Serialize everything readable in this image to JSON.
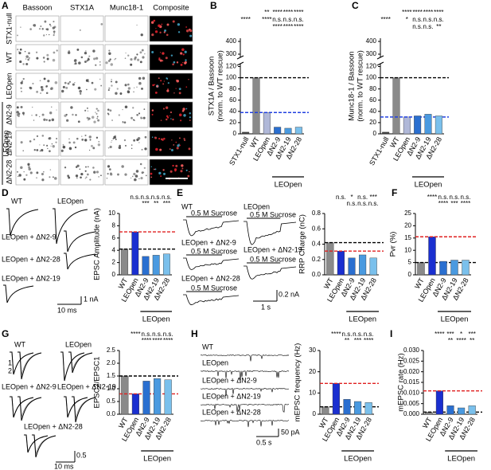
{
  "panels": {
    "letters": [
      "A",
      "B",
      "C",
      "D",
      "E",
      "F",
      "G",
      "H",
      "I"
    ]
  },
  "image_grid": {
    "columns": [
      "Bassoon",
      "STX1A",
      "Munc18-1",
      "Composite"
    ],
    "column_colors": [
      "#e0202a",
      "#2aa02a",
      "#3030c0",
      "#000000"
    ],
    "rows": [
      "STX1-null",
      "WT",
      "LEOpen",
      "ΔN2-9",
      "ΔN2-19",
      "ΔN2-28"
    ],
    "group": "LEOpen"
  },
  "traces": {
    "D": {
      "labels": [
        "WT",
        "LEOpen",
        "LEOpen + ΔN2-9",
        "LEOpen + ΔN2-28",
        "LEOpen + ΔN2-19"
      ],
      "scale_x": "10 ms",
      "scale_y": "1 nA"
    },
    "E": {
      "labels": [
        "WT",
        "LEOpen",
        "LEOpen + ΔN2-9",
        "LEOpen + ΔN2-19",
        "LEOpen + ΔN2-28"
      ],
      "stimulus": "0.5 M Sucrose",
      "scale_x": "1 s",
      "scale_y": "0.2 nA"
    },
    "G": {
      "labels": [
        "WT",
        "LEOpen",
        "LEOpen + ΔN2-9",
        "LEOpen + ΔN2-19",
        "LEOpen + ΔN2-28"
      ],
      "pulses": [
        "1",
        "2"
      ],
      "scale_x": "10 ms",
      "scale_y": "0.5"
    },
    "H": {
      "labels": [
        "WT",
        "LEOpen",
        "LEOpen + ΔN2-9",
        "LEOpen + ΔN2-19",
        "LEOpen + ΔN2-28"
      ],
      "scale_x": "0.5 s",
      "scale_y": "50 pA"
    }
  },
  "chart_data": [
    {
      "type": "bar",
      "ylabel": "STX1A / Bassoon",
      "ylabel_2": "(norm. to WT rescue)",
      "categories": [
        "STX1-null",
        "WT",
        "LEOpen",
        "ΔN2-9",
        "ΔN2-19",
        "ΔN2-28"
      ],
      "values": [
        3,
        100,
        38,
        12,
        10,
        12
      ],
      "colors": [
        "#444444",
        "#8a8a8a",
        "#b0b8d8",
        "#2a6fd0",
        "#4a9ae0",
        "#7ac0ec"
      ],
      "mean_lines": [
        null,
        "#000000",
        "#2040e0",
        null,
        null,
        null
      ],
      "ylim": [
        0,
        125
      ],
      "yticks": [
        0,
        20,
        40,
        60,
        80,
        100,
        120
      ],
      "ylim_upper": [
        275,
        425
      ],
      "yticks_upper": [
        300,
        400
      ],
      "stats": [
        {
          "color": "#000000",
          "labels": [
            null,
            null,
            "**",
            "****",
            "****",
            "****"
          ]
        },
        {
          "color": "#e02020",
          "labels": [
            "****",
            null,
            "****",
            "n.s.",
            "n.s.",
            "n.s."
          ]
        },
        {
          "color": "#2040e0",
          "labels": [
            null,
            null,
            null,
            "****",
            "****",
            "****"
          ]
        }
      ],
      "group": "LEOpen"
    },
    {
      "type": "bar",
      "ylabel": "Munc18-1 / Bassoon",
      "ylabel_2": "(norm. to WT rescue)",
      "categories": [
        "STX1-null",
        "WT",
        "LEOpen",
        "ΔN2-9",
        "ΔN2-19",
        "ΔN2-28"
      ],
      "values": [
        3,
        100,
        30,
        32,
        35,
        32
      ],
      "colors": [
        "#444444",
        "#8a8a8a",
        "#b0b8d8",
        "#2a6fd0",
        "#4a9ae0",
        "#7ac0ec"
      ],
      "mean_lines": [
        null,
        "#000000",
        "#2040e0",
        null,
        null,
        null
      ],
      "ylim": [
        0,
        125
      ],
      "yticks": [
        0,
        20,
        40,
        60,
        80,
        100,
        120
      ],
      "ylim_upper": [
        275,
        425
      ],
      "yticks_upper": [
        300,
        400
      ],
      "stats": [
        {
          "color": "#000000",
          "labels": [
            null,
            null,
            "****",
            "****",
            "****",
            "****"
          ]
        },
        {
          "color": "#e02020",
          "labels": [
            "****",
            null,
            "*",
            "n.s.",
            "n.s.",
            "n.s."
          ]
        },
        {
          "color": "#2040e0",
          "labels": [
            null,
            null,
            null,
            "n.s.",
            "n.s.",
            "**"
          ]
        }
      ],
      "group": "LEOpen"
    },
    {
      "type": "bar",
      "ylabel": "EPSC Amplitude (nA)",
      "categories": [
        "WT",
        "LEOpen",
        "ΔN2-9",
        "ΔN2-19",
        "ΔN2-28"
      ],
      "values": [
        4.2,
        7.0,
        3.0,
        3.2,
        3.4
      ],
      "colors": [
        "#8a8a8a",
        "#1a2fd0",
        "#2a6fd0",
        "#4a9ae0",
        "#7ac0ec"
      ],
      "mean_lines": [
        "#000000",
        "#e02020",
        null,
        null,
        null
      ],
      "ylim": [
        0,
        10
      ],
      "yticks": [
        0,
        2,
        4,
        6,
        8,
        10
      ],
      "stats": [
        {
          "color": "#000000",
          "labels": [
            null,
            "n.s.",
            "n.s.",
            "n.s.",
            "n.s."
          ]
        },
        {
          "color": "#e02020",
          "labels": [
            null,
            null,
            "***",
            "**",
            "***"
          ]
        }
      ],
      "group": "LEOpen"
    },
    {
      "type": "bar",
      "ylabel": "RRP Charge (nC)",
      "categories": [
        "WT",
        "LEOpen",
        "ΔN2-9",
        "ΔN2-19",
        "ΔN2-28"
      ],
      "values": [
        0.42,
        0.31,
        0.22,
        0.26,
        0.22
      ],
      "colors": [
        "#8a8a8a",
        "#1a2fd0",
        "#2a6fd0",
        "#4a9ae0",
        "#7ac0ec"
      ],
      "mean_lines": [
        "#000000",
        "#e02020",
        null,
        null,
        null
      ],
      "ylim": [
        0,
        0.8
      ],
      "yticks": [
        {
          "value": 0,
          "label": "0.0"
        },
        0.2,
        0.4,
        0.6,
        0.8
      ],
      "stats": [
        {
          "color": "#000000",
          "labels": [
            null,
            "n.s.",
            "*",
            "n.s.",
            "***"
          ]
        },
        {
          "color": "#e02020",
          "labels": [
            null,
            null,
            "n.s.",
            "n.s.",
            "n.s."
          ]
        }
      ],
      "group": "LEOpen"
    },
    {
      "type": "bar",
      "ylabel": "Pvr (%)",
      "categories": [
        "WT",
        "LEOpen",
        "ΔN2-9",
        "ΔN2-19",
        "ΔN2-28"
      ],
      "values": [
        5,
        15.5,
        5.5,
        6,
        6
      ],
      "colors": [
        "#8a8a8a",
        "#1a2fd0",
        "#2a6fd0",
        "#4a9ae0",
        "#7ac0ec"
      ],
      "mean_lines": [
        "#000000",
        "#e02020",
        null,
        null,
        null
      ],
      "ylim": [
        0,
        25
      ],
      "yticks": [
        0,
        5,
        10,
        15,
        20,
        25
      ],
      "stats": [
        {
          "color": "#000000",
          "labels": [
            null,
            "****",
            "n.s.",
            "n.s.",
            "n.s."
          ]
        },
        {
          "color": "#e02020",
          "labels": [
            null,
            null,
            "****",
            "***",
            "****"
          ]
        }
      ],
      "group": "LEOpen"
    },
    {
      "type": "bar",
      "ylabel": "EPSC2/EPSC1",
      "categories": [
        "WT",
        "LEOpen",
        "ΔN2-9",
        "ΔN2-19",
        "ΔN2-28"
      ],
      "values": [
        1.5,
        0.8,
        1.3,
        1.4,
        1.35
      ],
      "colors": [
        "#8a8a8a",
        "#1a2fd0",
        "#2a6fd0",
        "#4a9ae0",
        "#7ac0ec"
      ],
      "mean_lines": [
        "#000000",
        "#e02020",
        null,
        null,
        null
      ],
      "ylim": [
        0,
        2.5
      ],
      "yticks": [
        {
          "value": 0,
          "label": "0.0"
        },
        0.5,
        {
          "value": 1,
          "label": "1.0"
        },
        1.5,
        {
          "value": 2,
          "label": "2.0"
        },
        2.5
      ],
      "stats": [
        {
          "color": "#000000",
          "labels": [
            null,
            "****",
            "n.s.",
            "n.s.",
            "n.s."
          ]
        },
        {
          "color": "#e02020",
          "labels": [
            null,
            null,
            "****",
            "****",
            "****"
          ]
        }
      ],
      "group": "LEOpen"
    },
    {
      "type": "bar",
      "ylabel": "mEPSC frequency (Hz)",
      "categories": [
        "WT",
        "LEOpen",
        "ΔN2-9",
        "ΔN2-19",
        "ΔN2-28"
      ],
      "values": [
        3.5,
        14.5,
        7,
        6,
        5.5
      ],
      "colors": [
        "#8a8a8a",
        "#1a2fd0",
        "#2a6fd0",
        "#4a9ae0",
        "#7ac0ec"
      ],
      "mean_lines": [
        "#000000",
        "#e02020",
        null,
        null,
        null
      ],
      "ylim": [
        0,
        30
      ],
      "yticks": [
        0,
        10,
        20,
        30
      ],
      "stats": [
        {
          "color": "#000000",
          "labels": [
            null,
            "****",
            "n.s.",
            "n.s.",
            "n.s."
          ]
        },
        {
          "color": "#e02020",
          "labels": [
            null,
            null,
            "**",
            "***",
            "****"
          ]
        }
      ],
      "group": "LEOpen"
    },
    {
      "type": "bar",
      "ylabel": "mEPSC rate (Hz)",
      "categories": [
        "WT",
        "LEOpen",
        "ΔN2-9",
        "ΔN2-19",
        "ΔN2-28"
      ],
      "values": [
        0.001,
        0.011,
        0.004,
        0.003,
        0.004
      ],
      "colors": [
        "#8a8a8a",
        "#1a2fd0",
        "#2a6fd0",
        "#4a9ae0",
        "#7ac0ec"
      ],
      "mean_lines": [
        "#000000",
        "#e02020",
        null,
        null,
        null
      ],
      "ylim": [
        0,
        0.03
      ],
      "yticks": [
        {
          "value": 0,
          "label": "0.000"
        },
        {
          "value": 0.005,
          "label": "0.005"
        },
        {
          "value": 0.01,
          "label": "0.010"
        },
        {
          "value": 0.015,
          "label": "0.015"
        },
        {
          "value": 0.02,
          "label": "0.020"
        },
        {
          "value": 0.025,
          "label": "0.025"
        },
        {
          "value": 0.03,
          "label": "0.030"
        }
      ],
      "stats": [
        {
          "color": "#000000",
          "labels": [
            null,
            "****",
            "***",
            "*",
            "***"
          ]
        },
        {
          "color": "#e02020",
          "labels": [
            null,
            null,
            "**",
            "****",
            "**"
          ]
        }
      ],
      "group": "LEOpen"
    }
  ]
}
